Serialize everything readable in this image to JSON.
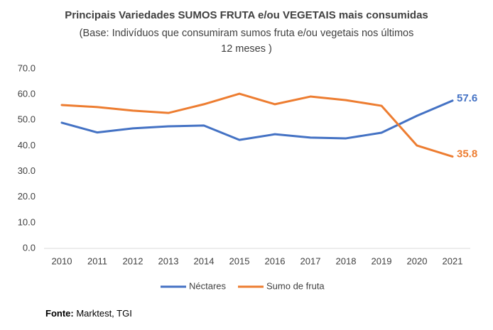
{
  "chart_data": {
    "type": "line",
    "title": "Principais Variedades SUMOS FRUTA e/ou VEGETAIS mais consumidas",
    "subtitle": [
      "(Base: Indivíduos que consumiram  sumos fruta e/ou vegetais nos últimos",
      "12 meses )"
    ],
    "categories": [
      "2010",
      "2011",
      "2012",
      "2013",
      "2014",
      "2015",
      "2016",
      "2017",
      "2018",
      "2019",
      "2020",
      "2021"
    ],
    "series": [
      {
        "name": "Néctares",
        "color": "#4472c4",
        "values": [
          49.0,
          45.2,
          46.8,
          47.6,
          47.9,
          42.3,
          44.5,
          43.2,
          42.9,
          45.1,
          51.7,
          57.6
        ]
      },
      {
        "name": "Sumo de fruta",
        "color": "#ed7d31",
        "values": [
          55.9,
          55.1,
          53.7,
          52.8,
          56.2,
          60.3,
          56.2,
          59.2,
          57.8,
          55.6,
          40.1,
          35.8
        ]
      }
    ],
    "ylim": [
      0,
      70
    ],
    "yticks": [
      {
        "value": 0,
        "label": "0.0"
      },
      {
        "value": 10,
        "label": "10.0"
      },
      {
        "value": 20,
        "label": "20.0"
      },
      {
        "value": 30,
        "label": "30.0"
      },
      {
        "value": 40,
        "label": "40.0"
      },
      {
        "value": 50,
        "label": "50.0"
      },
      {
        "value": 60,
        "label": "60.0"
      },
      {
        "value": 70,
        "label": "70.0"
      }
    ],
    "grid": false,
    "legend": "bottom",
    "source_label": "Fonte:",
    "source": "Marktest, TGI"
  }
}
